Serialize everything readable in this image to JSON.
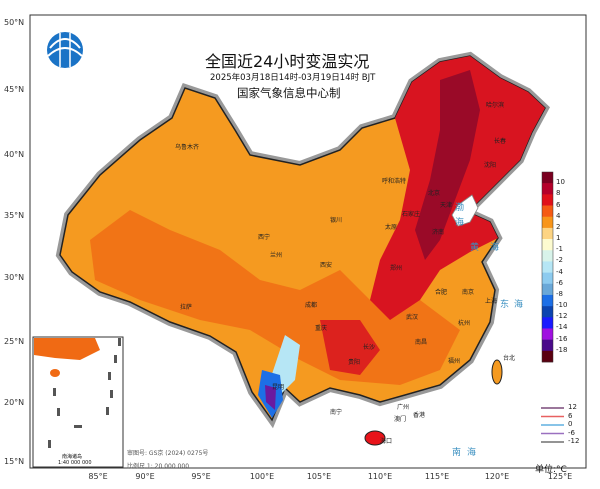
{
  "title": "全国近24小时变温实况",
  "subtitle": "2025年03月18日14时-03月19日14时  BJT",
  "agency": "国家气象信息中心制",
  "latitude_labels": [
    "50°N",
    "45°N",
    "40°N",
    "35°N",
    "30°N",
    "25°N",
    "20°N",
    "15°N"
  ],
  "longitude_labels": [
    "85°E",
    "90°E",
    "95°E",
    "100°E",
    "105°E",
    "110°E",
    "115°E",
    "120°E",
    "125°E"
  ],
  "colorbar": {
    "labels": [
      "10",
      "8",
      "6",
      "4",
      "2",
      "1",
      "-1",
      "-2",
      "-4",
      "-6",
      "-8",
      "-10",
      "-12",
      "-14",
      "-16",
      "-18"
    ],
    "colors": [
      "#7a0020",
      "#b5002a",
      "#e0101a",
      "#f55a14",
      "#f8951a",
      "#fdd483",
      "#fdfbd0",
      "#d8f3ea",
      "#b6e6f5",
      "#8dcbef",
      "#6aa8d8",
      "#1d6fe6",
      "#0c44b0",
      "#1a1aff",
      "#a010e0",
      "#4a0a8a",
      "#5a0010"
    ]
  },
  "contour_legend": [
    {
      "label": "12",
      "color": "#7a4a7a"
    },
    {
      "label": "6",
      "color": "#e86060"
    },
    {
      "label": "0",
      "color": "#60b0e0"
    },
    {
      "label": "-6",
      "color": "#9a70c0"
    },
    {
      "label": "-12",
      "color": "#707070"
    }
  ],
  "unit": "单位:°C",
  "inset": {
    "title": "南海诸岛",
    "scale": "1:40 000 000"
  },
  "map_approval": "审图号: GS京 (2024) 0275号",
  "map_scale": "比例尺 1: 20 000 000",
  "cities": [
    "哈尔滨",
    "长春",
    "沈阳",
    "乌鲁木齐",
    "呼和浩特",
    "北京",
    "天津",
    "石家庄",
    "济南",
    "太原",
    "银川",
    "西宁",
    "兰州",
    "西安",
    "郑州",
    "合肥",
    "南京",
    "上海",
    "杭州",
    "武汉",
    "拉萨",
    "成都",
    "重庆",
    "长沙",
    "南昌",
    "福州",
    "贵阳",
    "昆明",
    "南宁",
    "广州",
    "香港",
    "澳门",
    "海口",
    "台北"
  ],
  "seas": [
    "渤",
    "海",
    "黄",
    "海",
    "东",
    "海",
    "南",
    "海"
  ]
}
